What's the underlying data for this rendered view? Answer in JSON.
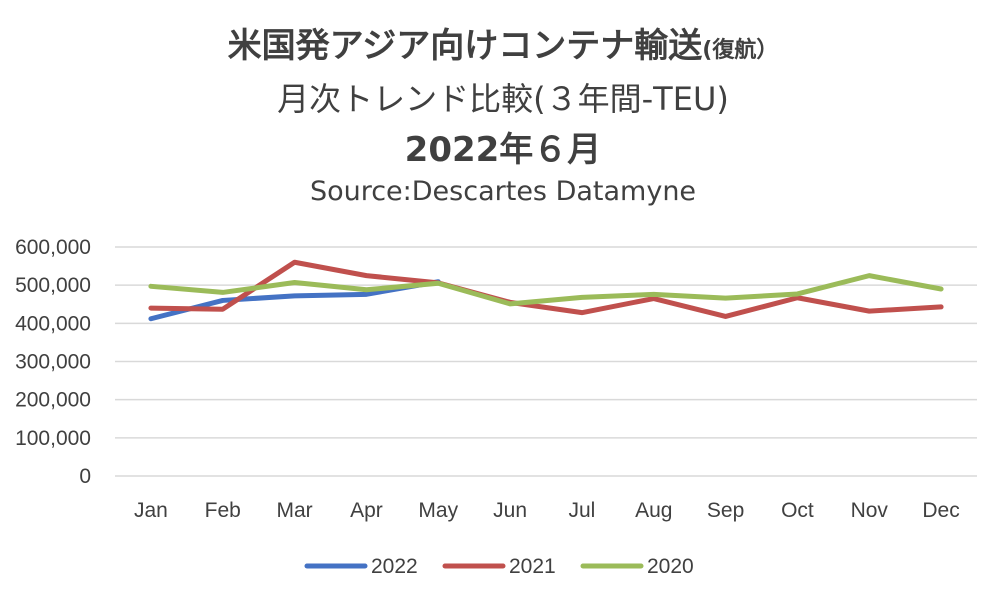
{
  "title": {
    "line1_main": "米国発アジア向けコンテナ輸送",
    "line1_small": "(復航）",
    "line2": "月次トレンド比較(３年間-TEU)",
    "line3": "2022年６月",
    "source": "Source:Descartes Datamyne"
  },
  "chart_data": {
    "type": "line",
    "title": "米国発アジア向けコンテナ輸送(復航） 月次トレンド比較(３年間-TEU) 2022年６月",
    "subtitle": "Source:Descartes Datamyne",
    "categories": [
      "Jan",
      "Feb",
      "Mar",
      "Apr",
      "May",
      "Jun",
      "Jul",
      "Aug",
      "Sep",
      "Oct",
      "Nov",
      "Dec"
    ],
    "ylim": [
      0,
      600000
    ],
    "yticks": [
      0,
      100000,
      200000,
      300000,
      400000,
      500000,
      600000
    ],
    "ytick_labels": [
      "0",
      "100,000",
      "200,000",
      "300,000",
      "400,000",
      "500,000",
      "600,000"
    ],
    "grid": true,
    "legend": "bottom",
    "series": [
      {
        "name": "2022",
        "color": "#4472C4",
        "values": [
          412000,
          460000,
          472000,
          476000,
          509000,
          null,
          null,
          null,
          null,
          null,
          null,
          null
        ]
      },
      {
        "name": "2021",
        "color": "#C0504D",
        "values": [
          440000,
          437000,
          560000,
          525000,
          506000,
          455000,
          428000,
          465000,
          418000,
          467000,
          432000,
          443000
        ]
      },
      {
        "name": "2020",
        "color": "#9BBB59",
        "values": [
          497000,
          481000,
          507000,
          488000,
          505000,
          451000,
          468000,
          476000,
          466000,
          477000,
          525000,
          490000
        ]
      }
    ]
  }
}
